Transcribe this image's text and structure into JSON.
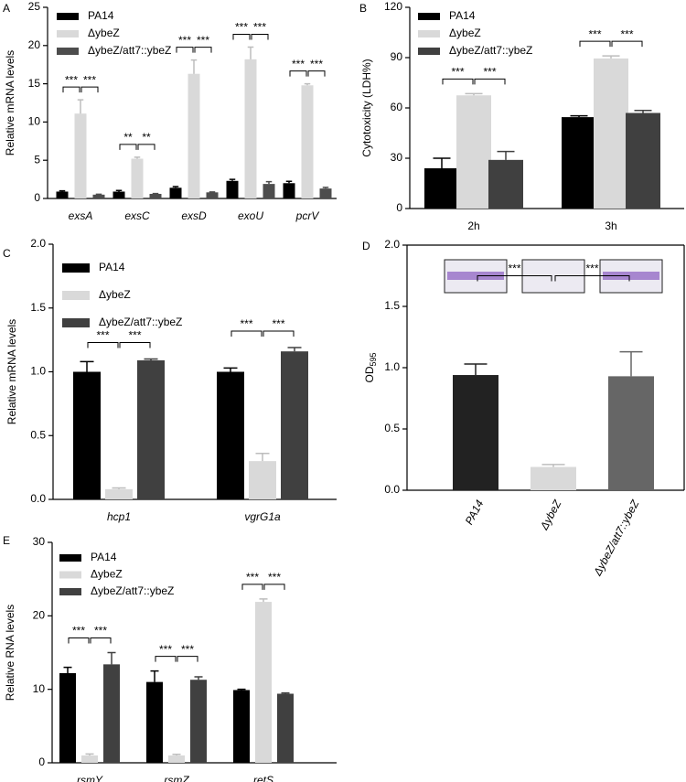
{
  "chart_data": [
    {
      "type": "bar",
      "label": "A",
      "ylabel": "Relative mRNA levels",
      "legend": "upper left",
      "categories": [
        "exsA",
        "exsC",
        "exsD",
        "exoU",
        "pcrV"
      ],
      "ylim": [
        0,
        25
      ],
      "yticks": [
        0,
        5,
        10,
        15,
        20,
        25
      ],
      "series": [
        {
          "name": "PA14",
          "color": "#000000",
          "values": [
            0.9,
            0.9,
            1.4,
            2.3,
            2.0
          ],
          "errors": [
            0.1,
            0.15,
            0.15,
            0.2,
            0.25
          ]
        },
        {
          "name": "ΔybeZ",
          "color": "#d9d9d9",
          "values": [
            11.1,
            5.2,
            16.3,
            18.2,
            14.8
          ],
          "errors": [
            1.8,
            0.2,
            1.8,
            1.6,
            0.2
          ]
        },
        {
          "name": "ΔybeZ/att7::ybeZ",
          "color": "#4d4d4d",
          "values": [
            0.5,
            0.6,
            0.8,
            1.9,
            1.3
          ],
          "errors": [
            0.05,
            0.05,
            0.05,
            0.3,
            0.15
          ]
        }
      ],
      "significance": [
        [
          "***",
          "***"
        ],
        [
          "**",
          "**"
        ],
        [
          "***",
          "***"
        ],
        [
          "***",
          "***"
        ],
        [
          "***",
          "***"
        ]
      ]
    },
    {
      "type": "bar",
      "label": "B",
      "ylabel": "Cytotoxicity (LDH%)",
      "legend": "upper left",
      "categories": [
        "2h",
        "3h"
      ],
      "ylim": [
        0,
        120
      ],
      "yticks": [
        0,
        30,
        60,
        90,
        120
      ],
      "series": [
        {
          "name": "PA14",
          "color": "#000000",
          "values": [
            24,
            54.5
          ],
          "errors": [
            6,
            0.8
          ]
        },
        {
          "name": "ΔybeZ",
          "color": "#d9d9d9",
          "values": [
            67.5,
            89.5
          ],
          "errors": [
            1,
            1.5
          ]
        },
        {
          "name": "ΔybeZ/att7::ybeZ",
          "color": "#404040",
          "values": [
            29,
            57
          ],
          "errors": [
            5,
            1.5
          ]
        }
      ],
      "significance": [
        [
          "***",
          "***"
        ],
        [
          "***",
          "***"
        ]
      ]
    },
    {
      "type": "bar",
      "label": "C",
      "ylabel": "Relative mRNA levels",
      "legend": "upper left",
      "categories": [
        "hcp1",
        "vgrG1a"
      ],
      "ylim": [
        0,
        2
      ],
      "yticks": [
        {
          "value": 0,
          "label": "0.0"
        },
        0.5,
        {
          "value": 1,
          "label": "1.0"
        },
        1.5,
        {
          "value": 2,
          "label": "2.0"
        }
      ],
      "series": [
        {
          "name": "PA14",
          "color": "#000000",
          "values": [
            1.0,
            1.0
          ],
          "errors": [
            0.08,
            0.03
          ]
        },
        {
          "name": "ΔybeZ",
          "color": "#d9d9d9",
          "values": [
            0.08,
            0.3
          ],
          "errors": [
            0.01,
            0.06
          ]
        },
        {
          "name": "ΔybeZ/att7::ybeZ",
          "color": "#404040",
          "values": [
            1.09,
            1.16
          ],
          "errors": [
            0.01,
            0.03
          ]
        }
      ],
      "significance": [
        [
          "***",
          "***"
        ],
        [
          "***",
          "***"
        ]
      ]
    },
    {
      "type": "bar",
      "label": "D",
      "ylabel": "OD",
      "ylabel_subscript": "595",
      "categories": [
        "PA14",
        "ΔybeZ",
        "ΔybeZ/att7::ybeZ"
      ],
      "ylim": [
        0,
        2
      ],
      "yticks": [
        {
          "value": 0,
          "label": "0.0"
        },
        0.5,
        {
          "value": 1,
          "label": "1.0"
        },
        1.5,
        {
          "value": 2,
          "label": "2.0"
        }
      ],
      "values": [
        0.94,
        0.19,
        0.93
      ],
      "errors": [
        0.09,
        0.02,
        0.2
      ],
      "colors": [
        "#222222",
        "#d9d9d9",
        "#666666"
      ],
      "significance": [
        "***",
        "***"
      ]
    },
    {
      "type": "bar",
      "label": "E",
      "ylabel": "Relative RNA levels",
      "legend": "upper left",
      "categories": [
        "rsmY",
        "rsmZ",
        "retS"
      ],
      "ylim": [
        0,
        30
      ],
      "yticks": [
        0,
        10,
        20,
        30
      ],
      "series": [
        {
          "name": "PA14",
          "color": "#000000",
          "values": [
            12.2,
            11.0,
            9.9
          ],
          "errors": [
            0.8,
            1.5,
            0.1
          ]
        },
        {
          "name": "ΔybeZ",
          "color": "#d9d9d9",
          "values": [
            1.0,
            1.0,
            21.9
          ],
          "errors": [
            0.2,
            0.15,
            0.4
          ]
        },
        {
          "name": "ΔybeZ/att7::ybeZ",
          "color": "#404040",
          "values": [
            13.4,
            11.3,
            9.4
          ],
          "errors": [
            1.6,
            0.4,
            0.1
          ]
        }
      ],
      "significance": [
        [
          "***",
          "***"
        ],
        [
          "***",
          "***"
        ],
        [
          "***",
          "***"
        ]
      ]
    }
  ]
}
